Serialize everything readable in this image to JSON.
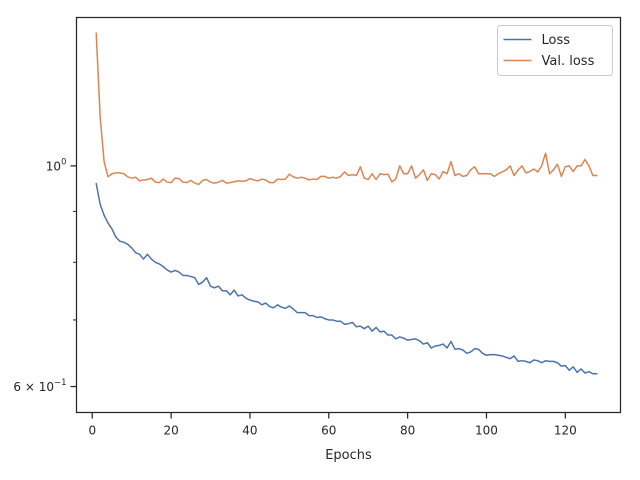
{
  "chart_data": {
    "type": "line",
    "xlabel": "Epochs",
    "ylabel": "",
    "yscale": "log",
    "xlim": [
      -4,
      134
    ],
    "ylim": [
      0.565,
      1.41
    ],
    "x_ticks": [
      0,
      20,
      40,
      60,
      80,
      100,
      120
    ],
    "y_major_ticks": [
      {
        "value": 1.0,
        "label": "10",
        "exponent": "0"
      },
      {
        "value": 0.6,
        "label": "6 × 10",
        "exponent": "−1"
      }
    ],
    "y_minor_ticks": [
      0.7,
      0.8,
      0.9
    ],
    "grid": false,
    "legend_position": "upper right",
    "x": [
      1,
      2,
      3,
      4,
      5,
      6,
      7,
      8,
      9,
      10,
      11,
      12,
      13,
      14,
      15,
      16,
      17,
      18,
      19,
      20,
      21,
      22,
      23,
      24,
      25,
      26,
      27,
      28,
      29,
      30,
      31,
      32,
      33,
      34,
      35,
      36,
      37,
      38,
      39,
      40,
      41,
      42,
      43,
      44,
      45,
      46,
      47,
      48,
      49,
      50,
      51,
      52,
      53,
      54,
      55,
      56,
      57,
      58,
      59,
      60,
      61,
      62,
      63,
      64,
      65,
      66,
      67,
      68,
      69,
      70,
      71,
      72,
      73,
      74,
      75,
      76,
      77,
      78,
      79,
      80,
      81,
      82,
      83,
      84,
      85,
      86,
      87,
      88,
      89,
      90,
      91,
      92,
      93,
      94,
      95,
      96,
      97,
      98,
      99,
      100,
      101,
      102,
      103,
      104,
      105,
      106,
      107,
      108,
      109,
      110,
      111,
      112,
      113,
      114,
      115,
      116,
      117,
      118,
      119,
      120,
      121,
      122,
      123,
      124,
      125,
      126,
      127,
      128
    ],
    "series": [
      {
        "name": "Loss",
        "color": "#4c72b0",
        "values": [
          0.96,
          0.915,
          0.892,
          0.876,
          0.864,
          0.848,
          0.84,
          0.838,
          0.834,
          0.827,
          0.818,
          0.815,
          0.806,
          0.815,
          0.806,
          0.8,
          0.797,
          0.792,
          0.786,
          0.782,
          0.785,
          0.782,
          0.776,
          0.776,
          0.774,
          0.772,
          0.76,
          0.764,
          0.772,
          0.757,
          0.754,
          0.757,
          0.749,
          0.749,
          0.742,
          0.75,
          0.74,
          0.742,
          0.736,
          0.733,
          0.731,
          0.73,
          0.725,
          0.728,
          0.722,
          0.72,
          0.725,
          0.721,
          0.719,
          0.723,
          0.718,
          0.712,
          0.712,
          0.712,
          0.707,
          0.707,
          0.704,
          0.705,
          0.702,
          0.7,
          0.7,
          0.698,
          0.698,
          0.693,
          0.694,
          0.696,
          0.689,
          0.69,
          0.686,
          0.69,
          0.682,
          0.688,
          0.681,
          0.682,
          0.676,
          0.676,
          0.67,
          0.673,
          0.671,
          0.668,
          0.669,
          0.67,
          0.667,
          0.662,
          0.664,
          0.656,
          0.659,
          0.66,
          0.662,
          0.656,
          0.666,
          0.654,
          0.655,
          0.653,
          0.648,
          0.65,
          0.655,
          0.654,
          0.648,
          0.645,
          0.646,
          0.646,
          0.645,
          0.644,
          0.642,
          0.64,
          0.644,
          0.636,
          0.637,
          0.636,
          0.634,
          0.638,
          0.637,
          0.634,
          0.637,
          0.636,
          0.636,
          0.634,
          0.629,
          0.63,
          0.623,
          0.628,
          0.62,
          0.625,
          0.619,
          0.621,
          0.618,
          0.618
        ]
      },
      {
        "name": "Val. loss",
        "color": "#dd8452",
        "values": [
          1.36,
          1.12,
          1.01,
          0.975,
          0.982,
          0.984,
          0.984,
          0.982,
          0.975,
          0.972,
          0.974,
          0.966,
          0.968,
          0.969,
          0.972,
          0.963,
          0.962,
          0.97,
          0.963,
          0.962,
          0.972,
          0.971,
          0.963,
          0.962,
          0.967,
          0.961,
          0.958,
          0.967,
          0.969,
          0.963,
          0.961,
          0.963,
          0.967,
          0.961,
          0.962,
          0.964,
          0.966,
          0.965,
          0.966,
          0.971,
          0.968,
          0.966,
          0.97,
          0.968,
          0.962,
          0.962,
          0.97,
          0.969,
          0.97,
          0.981,
          0.975,
          0.972,
          0.974,
          0.972,
          0.968,
          0.97,
          0.969,
          0.976,
          0.976,
          0.972,
          0.974,
          0.972,
          0.976,
          0.986,
          0.978,
          0.98,
          0.978,
          0.998,
          0.972,
          0.969,
          0.982,
          0.969,
          0.982,
          0.98,
          0.981,
          0.964,
          0.97,
          1.0,
          0.982,
          0.982,
          1.0,
          0.972,
          0.98,
          0.991,
          0.967,
          0.982,
          0.98,
          0.97,
          0.987,
          0.982,
          1.01,
          0.978,
          0.982,
          0.976,
          0.978,
          0.991,
          0.998,
          0.982,
          0.982,
          0.982,
          0.982,
          0.976,
          0.982,
          0.986,
          0.991,
          1.0,
          0.978,
          0.99,
          1.0,
          0.984,
          0.987,
          0.993,
          0.986,
          1.0,
          1.03,
          0.982,
          0.991,
          1.004,
          0.976,
          0.998,
          1.0,
          0.987,
          1.0,
          1.0,
          1.015,
          1.0,
          0.978,
          0.978
        ]
      }
    ]
  }
}
